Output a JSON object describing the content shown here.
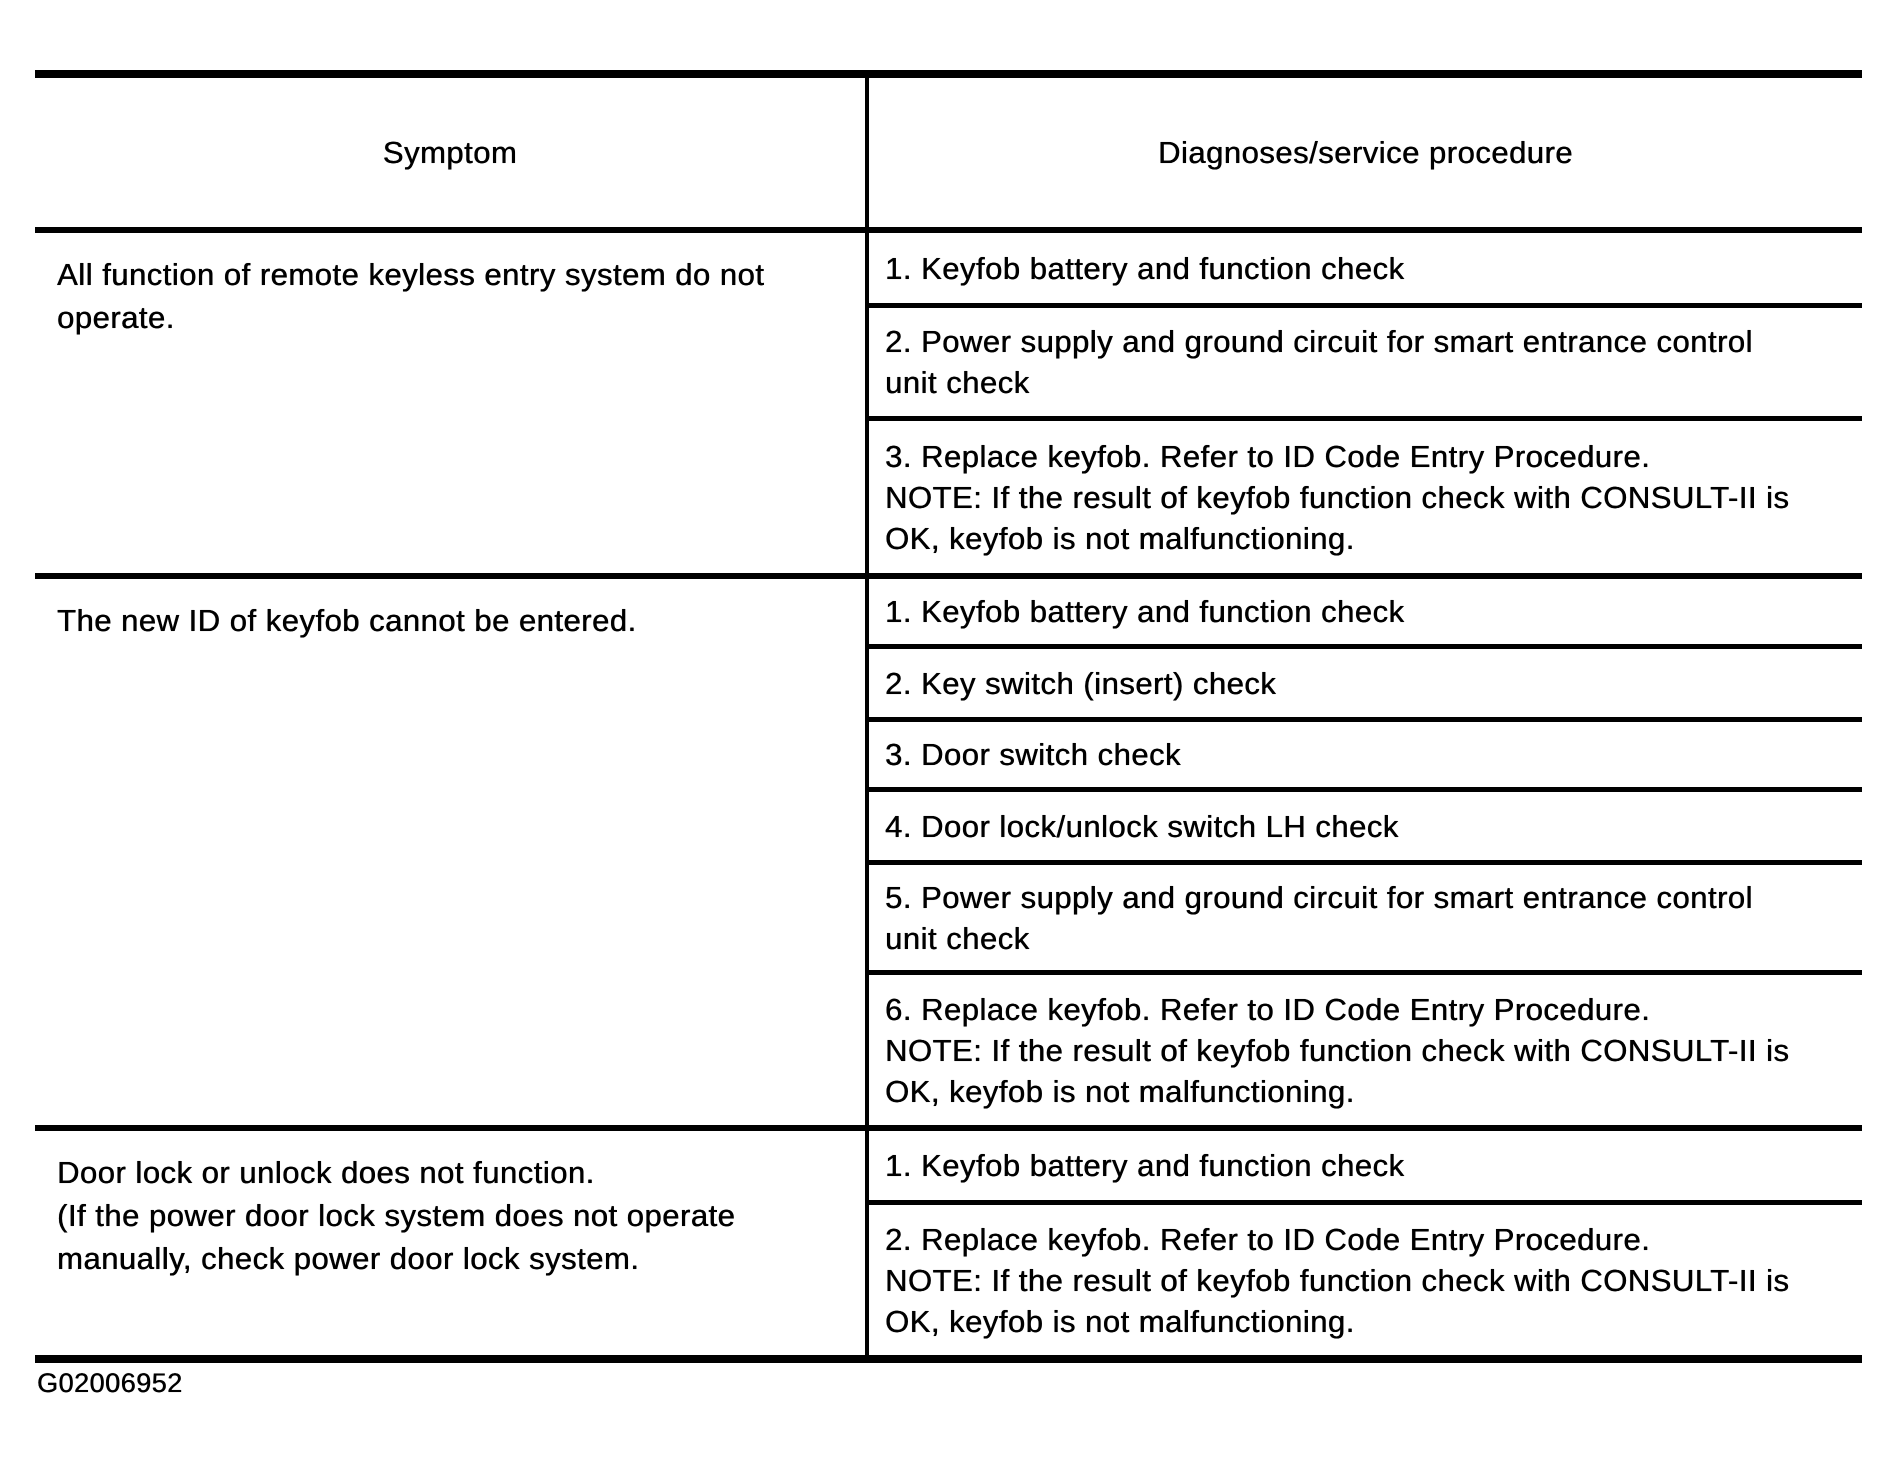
{
  "page": {
    "figure_id": "G02006952"
  },
  "table": {
    "header": {
      "symptom": "Symptom",
      "procedure": "Diagnoses/service procedure"
    },
    "rows": [
      {
        "symptom": {
          "lines": [
            "All function of remote keyless entry system do not",
            "operate."
          ]
        },
        "procedures": [
          {
            "lines": [
              "1. Keyfob battery and function check"
            ]
          },
          {
            "lines": [
              "2. Power supply and ground circuit for smart entrance control",
              "unit check"
            ]
          },
          {
            "lines": [
              "3. Replace keyfob. Refer to ID Code Entry Procedure.",
              "NOTE: If the result of keyfob function check with CONSULT-II is",
              "OK, keyfob is not malfunctioning."
            ]
          }
        ]
      },
      {
        "symptom": {
          "lines": [
            "The new ID of keyfob cannot be entered."
          ]
        },
        "procedures": [
          {
            "lines": [
              "1. Keyfob battery and function check"
            ]
          },
          {
            "lines": [
              "2. Key switch (insert) check"
            ]
          },
          {
            "lines": [
              "3. Door switch check"
            ]
          },
          {
            "lines": [
              "4. Door lock/unlock switch LH check"
            ]
          },
          {
            "lines": [
              "5. Power supply and ground circuit for smart entrance control",
              "unit check"
            ]
          },
          {
            "lines": [
              "6. Replace keyfob. Refer to ID Code Entry Procedure.",
              "NOTE: If the result of keyfob function check with CONSULT-II is",
              "OK, keyfob is not malfunctioning."
            ]
          }
        ]
      },
      {
        "symptom": {
          "lines": [
            "Door lock or unlock does not function.",
            "(If the power door lock system does not operate",
            "manually, check power door lock system."
          ]
        },
        "procedures": [
          {
            "lines": [
              "1. Keyfob battery and function check"
            ]
          },
          {
            "lines": [
              "2. Replace keyfob. Refer to ID Code Entry Procedure.",
              "NOTE: If the result of keyfob function check with CONSULT-II is",
              "OK, keyfob is not malfunctioning."
            ]
          }
        ]
      }
    ]
  },
  "colors": {
    "ink": "#000000",
    "paper": "#ffffff"
  }
}
